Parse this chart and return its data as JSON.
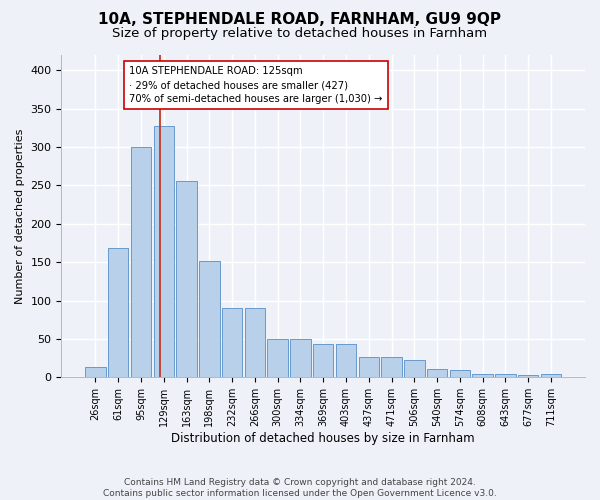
{
  "title": "10A, STEPHENDALE ROAD, FARNHAM, GU9 9QP",
  "subtitle": "Size of property relative to detached houses in Farnham",
  "xlabel": "Distribution of detached houses by size in Farnham",
  "ylabel": "Number of detached properties",
  "bar_labels": [
    "26sqm",
    "61sqm",
    "95sqm",
    "129sqm",
    "163sqm",
    "198sqm",
    "232sqm",
    "266sqm",
    "300sqm",
    "334sqm",
    "369sqm",
    "403sqm",
    "437sqm",
    "471sqm",
    "506sqm",
    "540sqm",
    "574sqm",
    "608sqm",
    "643sqm",
    "677sqm",
    "711sqm"
  ],
  "bar_values": [
    14,
    169,
    300,
    327,
    256,
    152,
    91,
    91,
    50,
    50,
    43,
    43,
    27,
    27,
    22,
    11,
    9,
    5,
    4,
    3,
    4
  ],
  "bar_color": "#b8d0ea",
  "bar_edge_color": "#6699cc",
  "annotation_line1": "10A STEPHENDALE ROAD: 125sqm",
  "annotation_line2": "· 29% of detached houses are smaller (427)",
  "annotation_line3": "70% of semi-detached houses are larger (1,030) →",
  "vline_x_index": 2.85,
  "vline_color": "#c0392b",
  "background_color": "#eef2f8",
  "grid_color": "#ffffff",
  "footer_line1": "Contains HM Land Registry data © Crown copyright and database right 2024.",
  "footer_line2": "Contains public sector information licensed under the Open Government Licence v3.0.",
  "ylim": [
    0,
    420
  ],
  "yticks": [
    0,
    50,
    100,
    150,
    200,
    250,
    300,
    350,
    400
  ]
}
